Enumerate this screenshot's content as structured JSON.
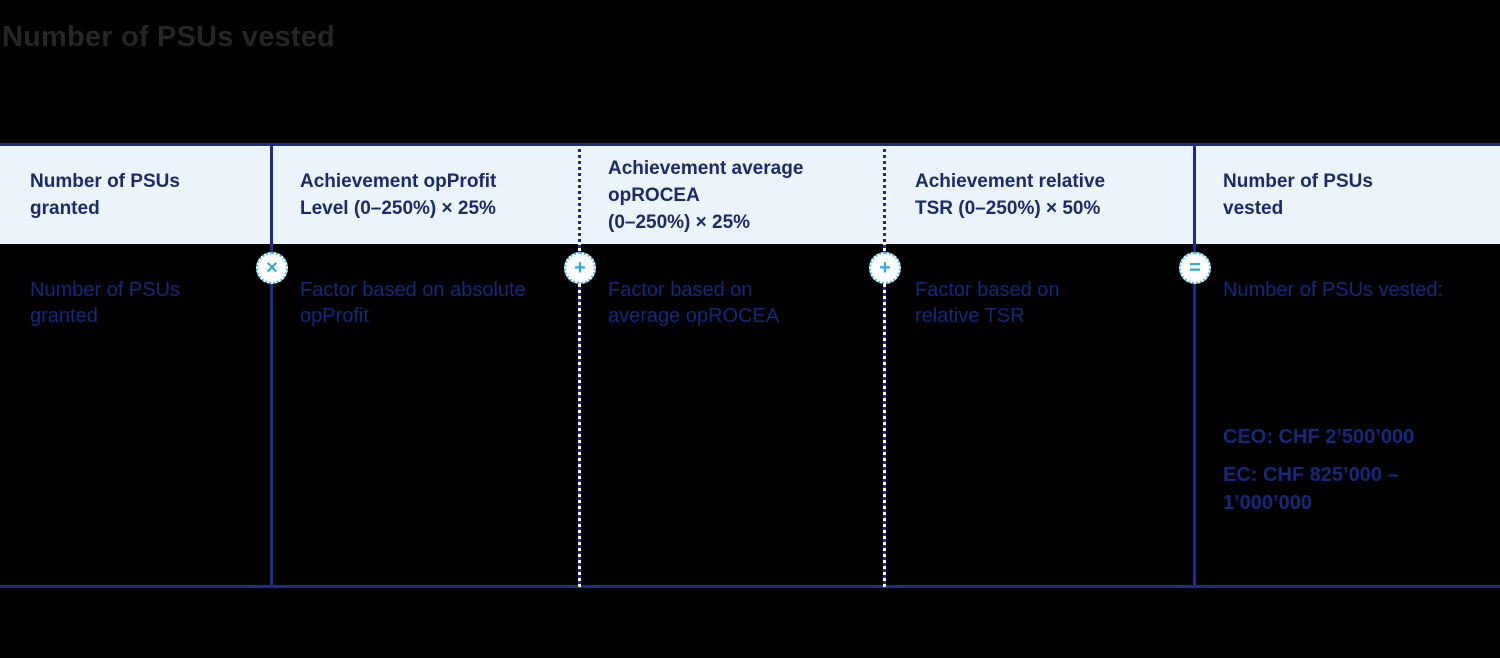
{
  "title": "Number of PSUs vested",
  "colors": {
    "background": "#000000",
    "title_text": "#262626",
    "accent_navy": "#1b2b8e",
    "header_bg": "#eaf4fa",
    "header_text": "#1a2a70",
    "body_text": "#14287d",
    "circle_border": "#45c1f0",
    "operator": "#29abe2"
  },
  "table": {
    "headers": [
      "Number of PSUs\ngranted",
      "Achievement opProfit\nLevel (0–250%) × 25%",
      "Achievement average\nopROCEA\n(0–250%) × 25%",
      "Achievement relative\nTSR (0–250%) × 50%",
      "Number of PSUs\nvested"
    ],
    "cells": [
      "Number of PSUs\ngranted",
      "Factor based on absolute\nopProfit",
      "Factor based on\naverage opROCEA",
      "Factor based on\nrelative TSR",
      "Number of PSUs vested:"
    ],
    "operators": [
      "×",
      "+",
      "+",
      "="
    ],
    "vested_amounts": {
      "ceo": "CEO: CHF 2’500’000",
      "ec": "EC: CHF 825’000 –\n1’000’000"
    }
  }
}
